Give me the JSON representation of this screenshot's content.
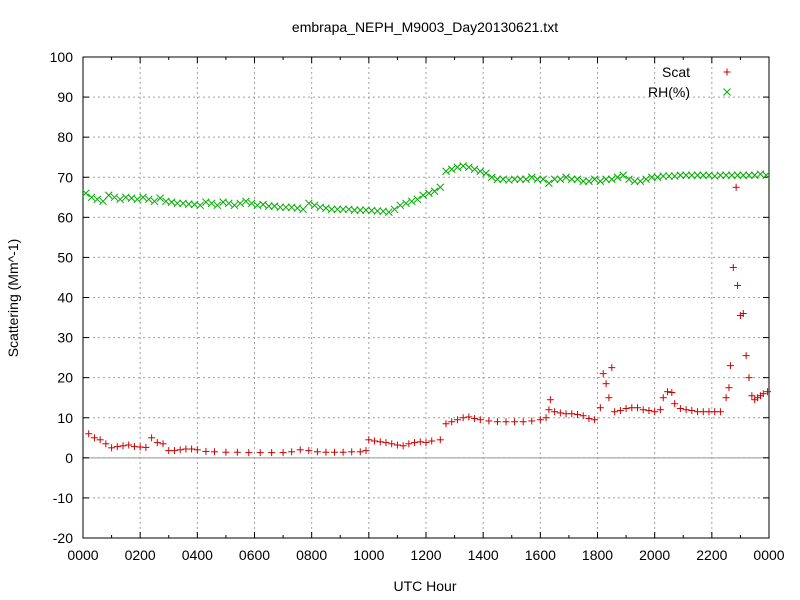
{
  "chart_data": {
    "type": "scatter",
    "title": "embrapa_NEPH_M9003_Day20130621.txt",
    "xlabel": "UTC Hour",
    "ylabel": "Scattering (Mm^-1)",
    "xlim": [
      0,
      24
    ],
    "ylim": [
      -20,
      100
    ],
    "x_ticks": [
      "0000",
      "0200",
      "0400",
      "0600",
      "0800",
      "1000",
      "1200",
      "1400",
      "1600",
      "1800",
      "2000",
      "2200",
      "0000"
    ],
    "y_ticks": [
      -20,
      -10,
      0,
      10,
      20,
      30,
      40,
      50,
      60,
      70,
      80,
      90,
      100
    ],
    "grid": true,
    "legend_position": "top-right",
    "colors": {
      "Scat": "#cc0000",
      "RH(%)": "#00aa00"
    },
    "series": [
      {
        "name": "Scat",
        "marker": "plus",
        "points": [
          [
            0.2,
            6.0
          ],
          [
            0.4,
            5.0
          ],
          [
            0.6,
            4.5
          ],
          [
            0.8,
            3.5
          ],
          [
            1.0,
            2.5
          ],
          [
            1.2,
            2.8
          ],
          [
            1.4,
            3.0
          ],
          [
            1.6,
            3.2
          ],
          [
            1.8,
            2.8
          ],
          [
            2.0,
            2.7
          ],
          [
            2.2,
            2.6
          ],
          [
            2.4,
            5.0
          ],
          [
            2.6,
            3.8
          ],
          [
            2.8,
            3.5
          ],
          [
            3.0,
            1.8
          ],
          [
            3.2,
            1.8
          ],
          [
            3.4,
            2.0
          ],
          [
            3.6,
            2.2
          ],
          [
            3.8,
            2.2
          ],
          [
            4.0,
            2.0
          ],
          [
            4.3,
            1.6
          ],
          [
            4.6,
            1.5
          ],
          [
            5.0,
            1.4
          ],
          [
            5.4,
            1.4
          ],
          [
            5.8,
            1.3
          ],
          [
            6.2,
            1.3
          ],
          [
            6.6,
            1.3
          ],
          [
            7.0,
            1.3
          ],
          [
            7.3,
            1.5
          ],
          [
            7.6,
            2.0
          ],
          [
            7.9,
            1.8
          ],
          [
            8.2,
            1.5
          ],
          [
            8.5,
            1.4
          ],
          [
            8.8,
            1.4
          ],
          [
            9.1,
            1.4
          ],
          [
            9.4,
            1.5
          ],
          [
            9.7,
            1.5
          ],
          [
            9.9,
            1.8
          ],
          [
            10.0,
            4.5
          ],
          [
            10.2,
            4.2
          ],
          [
            10.4,
            4.0
          ],
          [
            10.6,
            3.8
          ],
          [
            10.8,
            3.5
          ],
          [
            11.0,
            3.2
          ],
          [
            11.2,
            3.0
          ],
          [
            11.4,
            3.5
          ],
          [
            11.6,
            3.8
          ],
          [
            11.8,
            4.0
          ],
          [
            12.0,
            3.8
          ],
          [
            12.2,
            4.2
          ],
          [
            12.5,
            4.5
          ],
          [
            12.7,
            8.5
          ],
          [
            12.9,
            9.0
          ],
          [
            13.1,
            9.5
          ],
          [
            13.3,
            10.0
          ],
          [
            13.5,
            10.2
          ],
          [
            13.7,
            9.8
          ],
          [
            13.9,
            9.5
          ],
          [
            14.2,
            9.2
          ],
          [
            14.5,
            9.0
          ],
          [
            14.8,
            9.0
          ],
          [
            15.1,
            9.0
          ],
          [
            15.4,
            9.0
          ],
          [
            15.7,
            9.2
          ],
          [
            16.0,
            9.5
          ],
          [
            16.2,
            10.0
          ],
          [
            16.3,
            12.0
          ],
          [
            16.35,
            14.5
          ],
          [
            16.5,
            11.5
          ],
          [
            16.7,
            11.2
          ],
          [
            16.9,
            11.0
          ],
          [
            17.1,
            11.0
          ],
          [
            17.3,
            10.8
          ],
          [
            17.5,
            10.5
          ],
          [
            17.7,
            9.8
          ],
          [
            17.9,
            9.5
          ],
          [
            18.1,
            12.5
          ],
          [
            18.2,
            21.0
          ],
          [
            18.3,
            18.5
          ],
          [
            18.4,
            15.0
          ],
          [
            18.5,
            22.5
          ],
          [
            18.6,
            11.5
          ],
          [
            18.8,
            11.8
          ],
          [
            19.0,
            12.3
          ],
          [
            19.2,
            12.5
          ],
          [
            19.4,
            12.5
          ],
          [
            19.6,
            12.0
          ],
          [
            19.8,
            11.8
          ],
          [
            20.0,
            11.5
          ],
          [
            20.2,
            12.0
          ],
          [
            20.3,
            15.0
          ],
          [
            20.45,
            16.5
          ],
          [
            20.6,
            16.3
          ],
          [
            20.7,
            13.5
          ],
          [
            20.9,
            12.3
          ],
          [
            21.1,
            12.0
          ],
          [
            21.3,
            11.8
          ],
          [
            21.5,
            11.5
          ],
          [
            21.7,
            11.5
          ],
          [
            21.9,
            11.5
          ],
          [
            22.1,
            11.5
          ],
          [
            22.3,
            11.5
          ],
          [
            22.5,
            15.0
          ],
          [
            22.6,
            17.5
          ],
          [
            22.65,
            23.0
          ],
          [
            22.75,
            47.5
          ],
          [
            22.85,
            67.5
          ],
          [
            22.9,
            43.0
          ],
          [
            23.0,
            35.5
          ],
          [
            23.1,
            36.0
          ],
          [
            23.2,
            25.5
          ],
          [
            23.3,
            20.0
          ],
          [
            23.4,
            15.5
          ],
          [
            23.5,
            14.5
          ],
          [
            23.6,
            15.0
          ],
          [
            23.7,
            15.5
          ],
          [
            23.8,
            16.0
          ],
          [
            23.95,
            16.5
          ]
        ]
      },
      {
        "name": "RH(%)",
        "marker": "cross",
        "points": [
          [
            0.1,
            66.0
          ],
          [
            0.3,
            65.0
          ],
          [
            0.5,
            64.5
          ],
          [
            0.7,
            64.0
          ],
          [
            0.9,
            65.5
          ],
          [
            1.1,
            65.0
          ],
          [
            1.3,
            64.5
          ],
          [
            1.5,
            65.0
          ],
          [
            1.7,
            64.8
          ],
          [
            1.9,
            64.5
          ],
          [
            2.1,
            65.0
          ],
          [
            2.3,
            64.5
          ],
          [
            2.5,
            64.0
          ],
          [
            2.7,
            64.8
          ],
          [
            2.9,
            64.0
          ],
          [
            3.1,
            63.8
          ],
          [
            3.3,
            63.5
          ],
          [
            3.5,
            63.5
          ],
          [
            3.7,
            63.3
          ],
          [
            3.9,
            63.2
          ],
          [
            4.1,
            63.0
          ],
          [
            4.3,
            63.8
          ],
          [
            4.5,
            63.5
          ],
          [
            4.7,
            63.0
          ],
          [
            4.9,
            63.8
          ],
          [
            5.1,
            63.5
          ],
          [
            5.3,
            63.0
          ],
          [
            5.5,
            63.5
          ],
          [
            5.7,
            64.0
          ],
          [
            5.9,
            63.5
          ],
          [
            6.1,
            63.0
          ],
          [
            6.3,
            63.2
          ],
          [
            6.5,
            62.8
          ],
          [
            6.7,
            62.8
          ],
          [
            6.9,
            62.5
          ],
          [
            7.1,
            62.5
          ],
          [
            7.3,
            62.5
          ],
          [
            7.5,
            62.3
          ],
          [
            7.7,
            62.0
          ],
          [
            7.9,
            63.5
          ],
          [
            8.1,
            63.0
          ],
          [
            8.3,
            62.5
          ],
          [
            8.5,
            62.3
          ],
          [
            8.7,
            62.0
          ],
          [
            8.9,
            62.0
          ],
          [
            9.1,
            62.0
          ],
          [
            9.3,
            62.0
          ],
          [
            9.5,
            61.8
          ],
          [
            9.7,
            61.8
          ],
          [
            9.9,
            61.8
          ],
          [
            10.1,
            61.7
          ],
          [
            10.3,
            61.6
          ],
          [
            10.5,
            61.5
          ],
          [
            10.7,
            61.3
          ],
          [
            10.9,
            62.0
          ],
          [
            11.1,
            63.0
          ],
          [
            11.3,
            63.5
          ],
          [
            11.5,
            64.0
          ],
          [
            11.7,
            64.5
          ],
          [
            11.9,
            65.5
          ],
          [
            12.1,
            66.0
          ],
          [
            12.3,
            66.5
          ],
          [
            12.5,
            67.5
          ],
          [
            12.7,
            71.5
          ],
          [
            12.9,
            72.0
          ],
          [
            13.1,
            72.5
          ],
          [
            13.3,
            72.8
          ],
          [
            13.5,
            72.5
          ],
          [
            13.7,
            72.0
          ],
          [
            13.9,
            71.5
          ],
          [
            14.1,
            71.0
          ],
          [
            14.3,
            70.0
          ],
          [
            14.5,
            69.5
          ],
          [
            14.7,
            69.5
          ],
          [
            14.9,
            69.3
          ],
          [
            15.1,
            69.5
          ],
          [
            15.3,
            69.5
          ],
          [
            15.5,
            69.5
          ],
          [
            15.7,
            70.0
          ],
          [
            15.9,
            69.5
          ],
          [
            16.1,
            69.5
          ],
          [
            16.3,
            68.5
          ],
          [
            16.5,
            69.5
          ],
          [
            16.7,
            69.5
          ],
          [
            16.9,
            70.0
          ],
          [
            17.1,
            69.5
          ],
          [
            17.3,
            69.5
          ],
          [
            17.5,
            69.0
          ],
          [
            17.7,
            69.0
          ],
          [
            17.9,
            69.5
          ],
          [
            18.1,
            69.0
          ],
          [
            18.3,
            69.5
          ],
          [
            18.5,
            69.5
          ],
          [
            18.7,
            70.0
          ],
          [
            18.9,
            70.5
          ],
          [
            19.1,
            69.5
          ],
          [
            19.3,
            69.0
          ],
          [
            19.5,
            69.0
          ],
          [
            19.7,
            69.5
          ],
          [
            19.9,
            70.0
          ],
          [
            20.1,
            70.0
          ],
          [
            20.3,
            70.3
          ],
          [
            20.5,
            70.3
          ],
          [
            20.7,
            70.3
          ],
          [
            20.9,
            70.5
          ],
          [
            21.1,
            70.5
          ],
          [
            21.3,
            70.5
          ],
          [
            21.5,
            70.5
          ],
          [
            21.7,
            70.5
          ],
          [
            21.9,
            70.5
          ],
          [
            22.1,
            70.3
          ],
          [
            22.3,
            70.5
          ],
          [
            22.5,
            70.5
          ],
          [
            22.7,
            70.5
          ],
          [
            22.9,
            70.5
          ],
          [
            23.1,
            70.5
          ],
          [
            23.3,
            70.5
          ],
          [
            23.5,
            70.5
          ],
          [
            23.7,
            70.8
          ],
          [
            23.9,
            70.5
          ]
        ]
      }
    ]
  }
}
